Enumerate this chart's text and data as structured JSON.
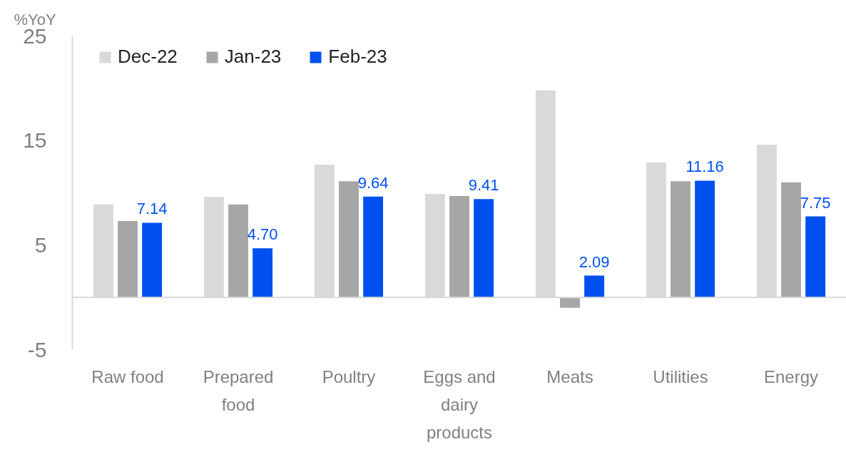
{
  "chart_data": {
    "type": "bar",
    "ylabel": "%YoY",
    "categories": [
      "Raw food",
      "Prepared food",
      "Poultry",
      "Eggs and dairy products",
      "Meats",
      "Utilities",
      "Energy"
    ],
    "series": [
      {
        "name": "Dec-22",
        "color": "#d9d9d9",
        "values": [
          8.9,
          9.6,
          12.7,
          9.9,
          19.8,
          12.9,
          14.6
        ]
      },
      {
        "name": "Jan-23",
        "color": "#a6a6a6",
        "values": [
          7.3,
          8.9,
          11.1,
          9.7,
          -1.0,
          11.1,
          11.0
        ]
      },
      {
        "name": "Feb-23",
        "color": "#0050ef",
        "values": [
          7.14,
          4.7,
          9.64,
          9.41,
          2.09,
          11.16,
          7.75
        ],
        "value_labels": [
          "7.14",
          "4.70",
          "9.64",
          "9.41",
          "2.09",
          "11.16",
          "7.75"
        ]
      }
    ],
    "ylim": [
      -5,
      25
    ],
    "yticks": [
      -5,
      5,
      15,
      25
    ],
    "legend": "top left"
  }
}
